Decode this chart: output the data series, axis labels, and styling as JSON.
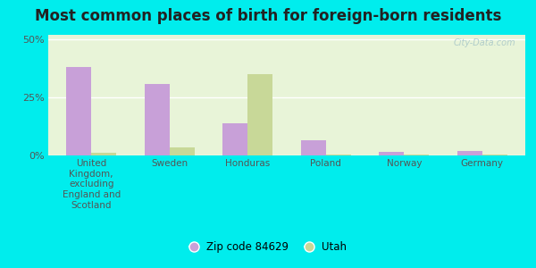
{
  "title": "Most common places of birth for foreign-born residents",
  "categories": [
    "United\nKingdom,\nexcluding\nEngland and\nScotland",
    "Sweden",
    "Honduras",
    "Poland",
    "Norway",
    "Germany"
  ],
  "zip_values": [
    38.0,
    31.0,
    14.0,
    6.5,
    1.5,
    2.0
  ],
  "utah_values": [
    1.0,
    3.5,
    35.0,
    0.5,
    0.5,
    0.5
  ],
  "zip_color": "#c8a0d8",
  "utah_color": "#c8d898",
  "background_outer": "#00eded",
  "background_inner_top": "#e8f4d8",
  "background_inner_bottom": "#d8ecc8",
  "yticks": [
    0,
    25,
    50
  ],
  "ylim": [
    0,
    52
  ],
  "legend_labels": [
    "Zip code 84629",
    "Utah"
  ],
  "watermark": "City-Data.com",
  "title_fontsize": 12,
  "tick_fontsize": 7.5,
  "ytick_fontsize": 8
}
